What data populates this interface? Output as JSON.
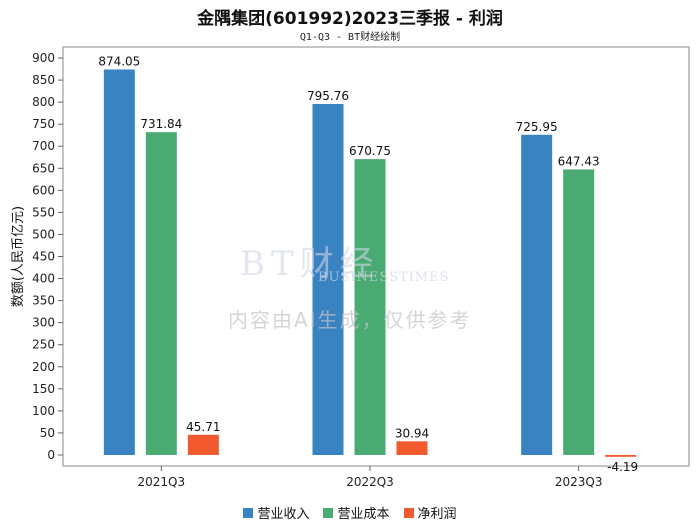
{
  "chart_data": {
    "type": "bar",
    "title": "金隅集团(601992)2023三季报 - 利润",
    "subtitle": "Q1-Q3 - BT财经绘制",
    "ylabel": "数额(人民币亿元)",
    "xlabel": "",
    "categories": [
      "2021Q3",
      "2022Q3",
      "2023Q3"
    ],
    "ylim": [
      -25,
      925
    ],
    "yticks": [
      0,
      50,
      100,
      150,
      200,
      250,
      300,
      350,
      400,
      450,
      500,
      550,
      600,
      650,
      700,
      750,
      800,
      850,
      900
    ],
    "grid": false,
    "legend_position": "bottom",
    "series": [
      {
        "name": "营业收入",
        "color": "#3a83c2",
        "values": [
          874.05,
          795.76,
          725.95
        ],
        "labels": [
          "874.05",
          "795.76",
          "725.95"
        ]
      },
      {
        "name": "营业成本",
        "color": "#4aab72",
        "values": [
          731.84,
          670.75,
          647.43
        ],
        "labels": [
          "731.84",
          "670.75",
          "647.43"
        ]
      },
      {
        "name": "净利润",
        "color": "#f05a2e",
        "values": [
          45.71,
          30.94,
          -4.19
        ],
        "labels": [
          "45.71",
          "30.94",
          "-4.19"
        ]
      }
    ]
  },
  "watermark": {
    "logo": "BT财经",
    "subtitle": "BUSINESSTIMES",
    "text": "内容由AI生成，仅供参考"
  }
}
